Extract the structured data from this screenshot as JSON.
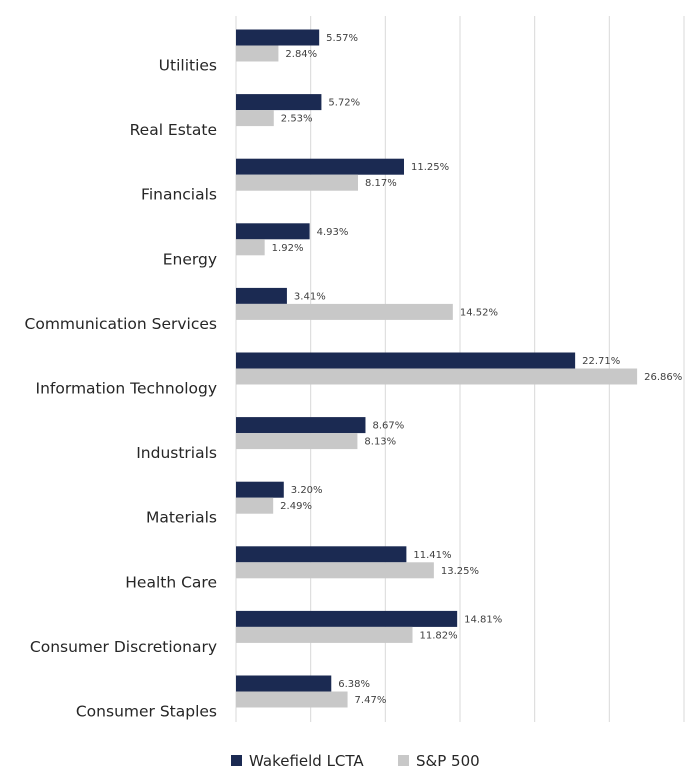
{
  "chart_data": {
    "type": "bar",
    "orientation": "horizontal",
    "categories": [
      "Utilities",
      "Real Estate",
      "Financials",
      "Energy",
      "Communication Services",
      "Information Technology",
      "Industrials",
      "Materials",
      "Health Care",
      "Consumer Discretionary",
      "Consumer Staples"
    ],
    "series": [
      {
        "name": "Wakefield LCTA",
        "color": "#1b2a52",
        "values": [
          5.57,
          5.72,
          11.25,
          4.93,
          3.41,
          22.71,
          8.67,
          3.2,
          11.41,
          14.81,
          6.38
        ],
        "labels": [
          "5.57%",
          "5.72%",
          "11.25%",
          "4.93%",
          "3.41%",
          "22.71%",
          "8.67%",
          "3.20%",
          "11.41%",
          "14.81%",
          "6.38%"
        ]
      },
      {
        "name": "S&P 500",
        "color": "#c8c8c8",
        "values": [
          2.84,
          2.53,
          8.17,
          1.92,
          14.52,
          26.86,
          8.13,
          2.49,
          13.25,
          11.82,
          7.47
        ],
        "labels": [
          "2.84%",
          "2.53%",
          "8.17%",
          "1.92%",
          "14.52%",
          "26.86%",
          "8.13%",
          "2.49%",
          "13.25%",
          "11.82%",
          "7.47%"
        ]
      }
    ],
    "xlim": [
      0,
      30
    ],
    "grid": true,
    "legend_position": "bottom"
  }
}
